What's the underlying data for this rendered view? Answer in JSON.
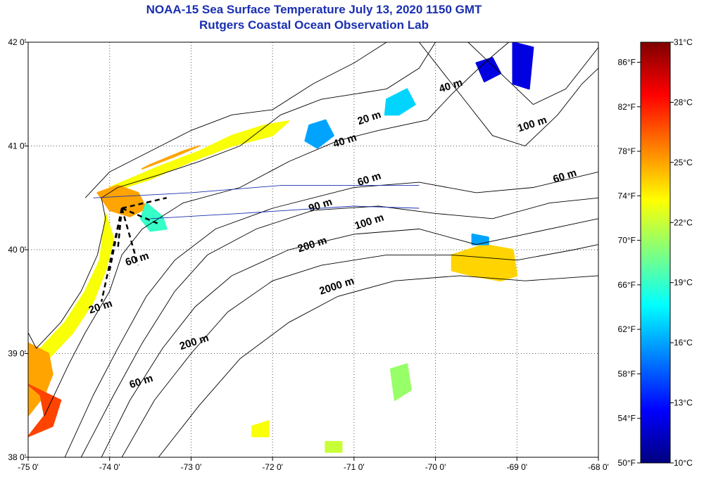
{
  "title_line1": "NOAA-15 Sea Surface Temperature July 13, 2020 1150 GMT",
  "title_line2": "Rutgers Coastal Ocean Observation Lab",
  "map": {
    "lon_range": [
      -75,
      -68
    ],
    "lat_range": [
      38,
      42
    ],
    "lon_ticks": [
      {
        "value": -75,
        "label": "-75 0'"
      },
      {
        "value": -74,
        "label": "-74 0'"
      },
      {
        "value": -73,
        "label": "-73 0'"
      },
      {
        "value": -72,
        "label": "-72 0'"
      },
      {
        "value": -71,
        "label": "-71 0'"
      },
      {
        "value": -70,
        "label": "-70 0'"
      },
      {
        "value": -69,
        "label": "-69 0'"
      },
      {
        "value": -68,
        "label": "-68 0'"
      }
    ],
    "lat_ticks": [
      {
        "value": 42,
        "label": "42 0'"
      },
      {
        "value": 41,
        "label": "41 0'"
      },
      {
        "value": 40,
        "label": "40 0'"
      },
      {
        "value": 39,
        "label": "39 0'"
      },
      {
        "value": 38,
        "label": "38 0'"
      }
    ],
    "grid": "dotted",
    "land_color": "#ffffff",
    "contour_labels": [
      {
        "text": "20 m",
        "lon": -70.8,
        "lat": 41.24
      },
      {
        "text": "40 m",
        "lon": -71.1,
        "lat": 41.02
      },
      {
        "text": "40 m",
        "lon": -69.8,
        "lat": 41.55
      },
      {
        "text": "100 m",
        "lon": -68.8,
        "lat": 41.18
      },
      {
        "text": "60 m",
        "lon": -70.8,
        "lat": 40.65
      },
      {
        "text": "60 m",
        "lon": -68.4,
        "lat": 40.68
      },
      {
        "text": "90 m",
        "lon": -71.4,
        "lat": 40.4
      },
      {
        "text": "100 m",
        "lon": -70.8,
        "lat": 40.24
      },
      {
        "text": "200 m",
        "lon": -71.5,
        "lat": 40.02
      },
      {
        "text": "2000 m",
        "lon": -71.2,
        "lat": 39.62
      },
      {
        "text": "60 m",
        "lon": -73.65,
        "lat": 39.88
      },
      {
        "text": "20 m",
        "lon": -74.1,
        "lat": 39.42
      },
      {
        "text": "200 m",
        "lon": -72.95,
        "lat": 39.08
      },
      {
        "text": "60 m",
        "lon": -73.6,
        "lat": 38.7
      }
    ]
  },
  "colorbar": {
    "c_min": 10,
    "c_max": 31,
    "colors": [
      "#00007f",
      "#0000ff",
      "#007fff",
      "#00ffff",
      "#7fff7f",
      "#ffff00",
      "#ff7f00",
      "#ff0000",
      "#7f0000"
    ],
    "celsius_ticks": [
      {
        "value": 31,
        "label": "31°C"
      },
      {
        "value": 28,
        "label": "28°C"
      },
      {
        "value": 25,
        "label": "25°C"
      },
      {
        "value": 22,
        "label": "22°C"
      },
      {
        "value": 19,
        "label": "19°C"
      },
      {
        "value": 16,
        "label": "16°C"
      },
      {
        "value": 13,
        "label": "13°C"
      },
      {
        "value": 10,
        "label": "10°C"
      }
    ],
    "fahrenheit_ticks": [
      {
        "value": 86,
        "label": "86°F"
      },
      {
        "value": 82,
        "label": "82°F"
      },
      {
        "value": 78,
        "label": "78°F"
      },
      {
        "value": 74,
        "label": "74°F"
      },
      {
        "value": 70,
        "label": "70°F"
      },
      {
        "value": 66,
        "label": "66°F"
      },
      {
        "value": 62,
        "label": "62°F"
      },
      {
        "value": 58,
        "label": "58°F"
      },
      {
        "value": 54,
        "label": "54°F"
      },
      {
        "value": 50,
        "label": "50°F"
      }
    ]
  },
  "sst_patches": [
    {
      "name": "li-sound",
      "temp_c": 23,
      "pts": [
        [
          -74.0,
          40.6
        ],
        [
          -73.4,
          40.8
        ],
        [
          -72.9,
          40.95
        ],
        [
          -72.5,
          41.1
        ],
        [
          -72.1,
          41.2
        ],
        [
          -71.8,
          41.24
        ],
        [
          -72.0,
          41.1
        ],
        [
          -72.5,
          41.0
        ],
        [
          -73.0,
          40.85
        ],
        [
          -73.5,
          40.68
        ],
        [
          -73.9,
          40.58
        ]
      ]
    },
    {
      "name": "li-sound-warm",
      "temp_c": 25,
      "pts": [
        [
          -73.6,
          40.78
        ],
        [
          -73.2,
          40.9
        ],
        [
          -72.9,
          41.0
        ],
        [
          -73.1,
          40.95
        ],
        [
          -73.5,
          40.82
        ]
      ]
    },
    {
      "name": "ny-bight",
      "temp_c": 25,
      "pts": [
        [
          -74.15,
          40.55
        ],
        [
          -73.9,
          40.62
        ],
        [
          -73.65,
          40.55
        ],
        [
          -73.55,
          40.4
        ],
        [
          -73.75,
          40.32
        ],
        [
          -74.0,
          40.38
        ]
      ]
    },
    {
      "name": "ny-bight-cool",
      "temp_c": 19,
      "pts": [
        [
          -73.55,
          40.45
        ],
        [
          -73.35,
          40.32
        ],
        [
          -73.3,
          40.2
        ],
        [
          -73.5,
          40.18
        ],
        [
          -73.62,
          40.3
        ]
      ]
    },
    {
      "name": "nj-coast",
      "temp_c": 23,
      "pts": [
        [
          -74.05,
          40.35
        ],
        [
          -73.95,
          40.1
        ],
        [
          -74.05,
          39.8
        ],
        [
          -74.2,
          39.5
        ],
        [
          -74.45,
          39.2
        ],
        [
          -74.75,
          38.95
        ],
        [
          -74.9,
          38.85
        ],
        [
          -74.85,
          39.05
        ],
        [
          -74.55,
          39.3
        ],
        [
          -74.3,
          39.6
        ],
        [
          -74.12,
          39.9
        ],
        [
          -74.08,
          40.15
        ]
      ]
    },
    {
      "name": "de-coast",
      "temp_c": 25,
      "pts": [
        [
          -75.0,
          39.1
        ],
        [
          -74.75,
          39.0
        ],
        [
          -74.7,
          38.8
        ],
        [
          -74.8,
          38.6
        ],
        [
          -75.0,
          38.4
        ],
        [
          -75.0,
          38.7
        ]
      ]
    },
    {
      "name": "de-coast-hot",
      "temp_c": 27,
      "pts": [
        [
          -75.0,
          38.7
        ],
        [
          -74.85,
          38.6
        ],
        [
          -74.8,
          38.4
        ],
        [
          -75.0,
          38.2
        ],
        [
          -74.7,
          38.3
        ],
        [
          -74.6,
          38.55
        ]
      ]
    },
    {
      "name": "ri-sound",
      "temp_c": 16,
      "pts": [
        [
          -71.55,
          41.2
        ],
        [
          -71.35,
          41.25
        ],
        [
          -71.25,
          41.1
        ],
        [
          -71.45,
          40.98
        ],
        [
          -71.6,
          41.05
        ]
      ]
    },
    {
      "name": "cape-cod",
      "temp_c": 17,
      "pts": [
        [
          -70.6,
          41.45
        ],
        [
          -70.35,
          41.55
        ],
        [
          -70.25,
          41.4
        ],
        [
          -70.45,
          41.3
        ],
        [
          -70.62,
          41.3
        ]
      ]
    },
    {
      "name": "gom-cold-1",
      "temp_c": 12,
      "pts": [
        [
          -69.5,
          41.8
        ],
        [
          -69.3,
          41.85
        ],
        [
          -69.2,
          41.7
        ],
        [
          -69.4,
          41.62
        ]
      ]
    },
    {
      "name": "gom-cold-2",
      "temp_c": 12,
      "pts": [
        [
          -69.05,
          42.0
        ],
        [
          -68.8,
          41.95
        ],
        [
          -68.85,
          41.55
        ],
        [
          -69.05,
          41.6
        ]
      ]
    },
    {
      "name": "slope-warm",
      "temp_c": 24,
      "pts": [
        [
          -69.8,
          39.95
        ],
        [
          -69.4,
          40.05
        ],
        [
          -69.05,
          40.0
        ],
        [
          -69.0,
          39.75
        ],
        [
          -69.2,
          39.7
        ],
        [
          -69.55,
          39.75
        ],
        [
          -69.8,
          39.8
        ]
      ]
    },
    {
      "name": "slope-cool",
      "temp_c": 16,
      "pts": [
        [
          -69.55,
          40.15
        ],
        [
          -69.35,
          40.12
        ],
        [
          -69.35,
          40.05
        ],
        [
          -69.55,
          40.05
        ]
      ]
    },
    {
      "name": "offshore-1",
      "temp_c": 21,
      "pts": [
        [
          -70.55,
          38.85
        ],
        [
          -70.35,
          38.9
        ],
        [
          -70.3,
          38.65
        ],
        [
          -70.5,
          38.55
        ]
      ]
    },
    {
      "name": "offshore-2",
      "temp_c": 23,
      "pts": [
        [
          -72.25,
          38.3
        ],
        [
          -72.05,
          38.35
        ],
        [
          -72.05,
          38.2
        ],
        [
          -72.25,
          38.2
        ]
      ]
    },
    {
      "name": "offshore-3",
      "temp_c": 22,
      "pts": [
        [
          -71.35,
          38.15
        ],
        [
          -71.15,
          38.15
        ],
        [
          -71.15,
          38.05
        ],
        [
          -71.35,
          38.05
        ]
      ]
    }
  ]
}
